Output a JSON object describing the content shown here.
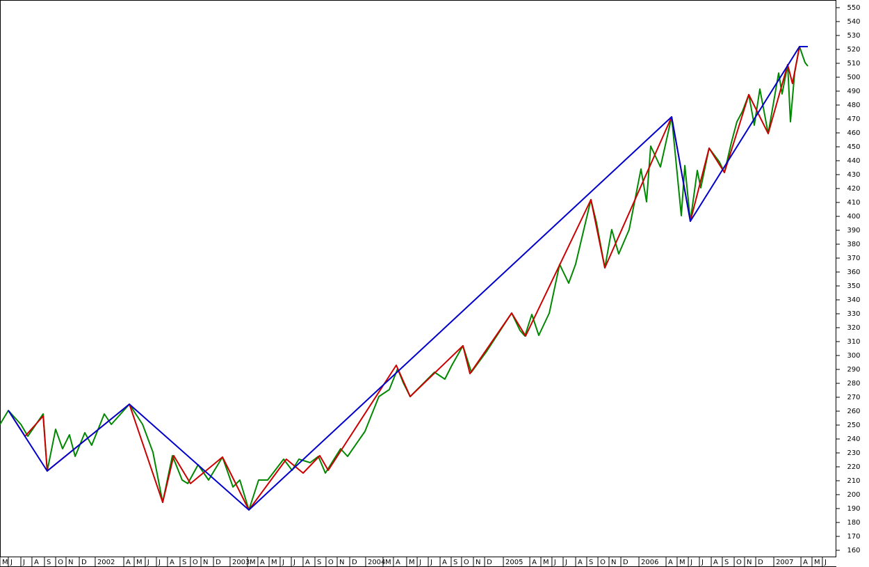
{
  "chart_data": {
    "type": "line",
    "xlim": [
      0,
      74
    ],
    "ylim": [
      150.5,
      555.5
    ],
    "yticks": [
      160,
      170,
      180,
      190,
      200,
      210,
      220,
      230,
      240,
      250,
      260,
      270,
      280,
      290,
      300,
      310,
      320,
      330,
      340,
      350,
      360,
      370,
      380,
      390,
      400,
      410,
      420,
      430,
      440,
      450,
      460,
      470,
      480,
      490,
      500,
      510,
      520,
      530,
      540,
      550
    ],
    "xticks": [
      {
        "value": 0.12,
        "label": "M"
      },
      {
        "value": 0.86,
        "label": "J"
      },
      {
        "value": 1.97,
        "label": "J"
      },
      {
        "value": 2.95,
        "label": "A"
      },
      {
        "value": 4.06,
        "label": "S"
      },
      {
        "value": 5.05,
        "label": "O"
      },
      {
        "value": 5.97,
        "label": "N"
      },
      {
        "value": 7.14,
        "label": "D"
      },
      {
        "value": 8.55,
        "label": "2002"
      },
      {
        "value": 11.08,
        "label": "A"
      },
      {
        "value": 12.0,
        "label": "M"
      },
      {
        "value": 12.98,
        "label": "J"
      },
      {
        "value": 13.97,
        "label": "J"
      },
      {
        "value": 14.95,
        "label": "A"
      },
      {
        "value": 16.06,
        "label": "S"
      },
      {
        "value": 16.98,
        "label": "O"
      },
      {
        "value": 17.91,
        "label": "N"
      },
      {
        "value": 19.02,
        "label": "D"
      },
      {
        "value": 20.49,
        "label": "2003"
      },
      {
        "value": 22.03,
        "label": "M"
      },
      {
        "value": 22.95,
        "label": "A"
      },
      {
        "value": 23.94,
        "label": "M"
      },
      {
        "value": 24.92,
        "label": "J"
      },
      {
        "value": 25.91,
        "label": "J"
      },
      {
        "value": 26.95,
        "label": "A"
      },
      {
        "value": 28.0,
        "label": "S"
      },
      {
        "value": 28.98,
        "label": "O"
      },
      {
        "value": 29.97,
        "label": "N"
      },
      {
        "value": 31.08,
        "label": "D"
      },
      {
        "value": 32.49,
        "label": "2004"
      },
      {
        "value": 34.03,
        "label": "M"
      },
      {
        "value": 34.95,
        "label": "A"
      },
      {
        "value": 36.12,
        "label": "M"
      },
      {
        "value": 37.05,
        "label": "J"
      },
      {
        "value": 38.03,
        "label": "J"
      },
      {
        "value": 39.08,
        "label": "A"
      },
      {
        "value": 40.06,
        "label": "S"
      },
      {
        "value": 40.98,
        "label": "O"
      },
      {
        "value": 42.03,
        "label": "N"
      },
      {
        "value": 43.02,
        "label": "D"
      },
      {
        "value": 44.68,
        "label": "2005"
      },
      {
        "value": 47.02,
        "label": "A"
      },
      {
        "value": 48.0,
        "label": "M"
      },
      {
        "value": 48.98,
        "label": "J"
      },
      {
        "value": 49.97,
        "label": "J"
      },
      {
        "value": 51.08,
        "label": "A"
      },
      {
        "value": 52.06,
        "label": "S"
      },
      {
        "value": 53.05,
        "label": "O"
      },
      {
        "value": 54.03,
        "label": "N"
      },
      {
        "value": 55.08,
        "label": "D"
      },
      {
        "value": 56.68,
        "label": "2006"
      },
      {
        "value": 59.08,
        "label": "A"
      },
      {
        "value": 60.06,
        "label": "M"
      },
      {
        "value": 61.05,
        "label": "J"
      },
      {
        "value": 62.03,
        "label": "J"
      },
      {
        "value": 63.08,
        "label": "A"
      },
      {
        "value": 64.06,
        "label": "S"
      },
      {
        "value": 65.11,
        "label": "O"
      },
      {
        "value": 66.03,
        "label": "N"
      },
      {
        "value": 67.02,
        "label": "D"
      },
      {
        "value": 68.62,
        "label": "2007"
      },
      {
        "value": 71.02,
        "label": "A"
      },
      {
        "value": 72.0,
        "label": "M"
      },
      {
        "value": 72.92,
        "label": "J"
      }
    ],
    "series": [
      {
        "color": "#008800",
        "x": [
          0,
          0.74,
          1.85,
          2.46,
          3.82,
          4.18,
          4.92,
          5.54,
          6.15,
          6.65,
          7.51,
          8.12,
          9.23,
          9.85,
          11.45,
          12.62,
          13.54,
          14.4,
          15.26,
          16.12,
          16.62,
          17.54,
          18.46,
          19.69,
          20.62,
          21.23,
          22.03,
          22.89,
          23.69,
          25.11,
          25.85,
          26.46,
          27.45,
          28.18,
          28.8,
          30.15,
          30.77,
          32.31,
          33.54,
          34.46,
          35.2,
          35.69,
          36.31,
          37.54,
          38.46,
          39.38,
          40.0,
          40.98,
          41.72,
          43.08,
          45.29,
          46.03,
          46.46,
          47.08,
          47.69,
          48.62,
          49.54,
          50.34,
          50.95,
          52.31,
          52.8,
          53.54,
          54.15,
          54.77,
          55.69,
          56.74,
          57.23,
          57.6,
          58.46,
          59.45,
          60.31,
          60.62,
          61.11,
          61.72,
          62.03,
          62.77,
          63.69,
          64.12,
          64.74,
          65.23,
          65.72,
          66.28,
          66.77,
          67.26,
          68.0,
          68.92,
          69.23,
          69.72,
          69.97,
          70.34,
          70.77,
          71.26,
          71.51
        ],
        "values": [
          250.5,
          260.5,
          250.5,
          242,
          258,
          217,
          247,
          233,
          243,
          227.5,
          244.5,
          235.5,
          258,
          250.5,
          265,
          250.5,
          230.5,
          194.5,
          228,
          210.5,
          208,
          221.5,
          210.5,
          227,
          205.5,
          210.5,
          189,
          210.5,
          210.5,
          225.5,
          217.5,
          225.5,
          223,
          227.5,
          215.5,
          233,
          227.5,
          245.5,
          270.5,
          275.5,
          290.5,
          280.5,
          270.5,
          280.5,
          288,
          283,
          293,
          307,
          288,
          303,
          330.5,
          318,
          314,
          329.5,
          314.5,
          330.5,
          365.5,
          352,
          365.5,
          412,
          395.5,
          363,
          390.5,
          373,
          390.5,
          434,
          410.5,
          450.5,
          435.5,
          471.5,
          400.5,
          436.5,
          396.5,
          433,
          420.5,
          449,
          439,
          431.5,
          453,
          468,
          475.5,
          487.5,
          465.5,
          491.5,
          459.5,
          503,
          488,
          509,
          468,
          503,
          522,
          510.5,
          508
        ]
      },
      {
        "color": "#cc0000",
        "x": [
          0.74,
          2.22,
          3.82,
          4.18,
          11.45,
          14.4,
          15.38,
          16.86,
          19.69,
          22.03,
          25.35,
          26.83,
          28.31,
          29.05,
          35.08,
          36.31,
          40.98,
          41.6,
          45.29,
          46.52,
          52.31,
          53.54,
          59.45,
          61.11,
          62.77,
          64.12,
          66.28,
          68.0,
          69.72,
          70.15,
          70.77
        ],
        "values": [
          260.5,
          242,
          256.5,
          217,
          265,
          194.5,
          228,
          208,
          227,
          189,
          225.5,
          215.5,
          228,
          217.5,
          293,
          270.5,
          307,
          287,
          330.5,
          314,
          412,
          363,
          471.5,
          396.5,
          449,
          431.5,
          487.5,
          459.5,
          509,
          495.5,
          522
        ]
      },
      {
        "color": "#0000cc",
        "x": [
          0.74,
          4.18,
          11.45,
          22.03,
          59.45,
          61.11,
          70.77,
          71.51
        ],
        "values": [
          260.5,
          217,
          265,
          189,
          471.5,
          396.5,
          522,
          522
        ]
      }
    ]
  }
}
